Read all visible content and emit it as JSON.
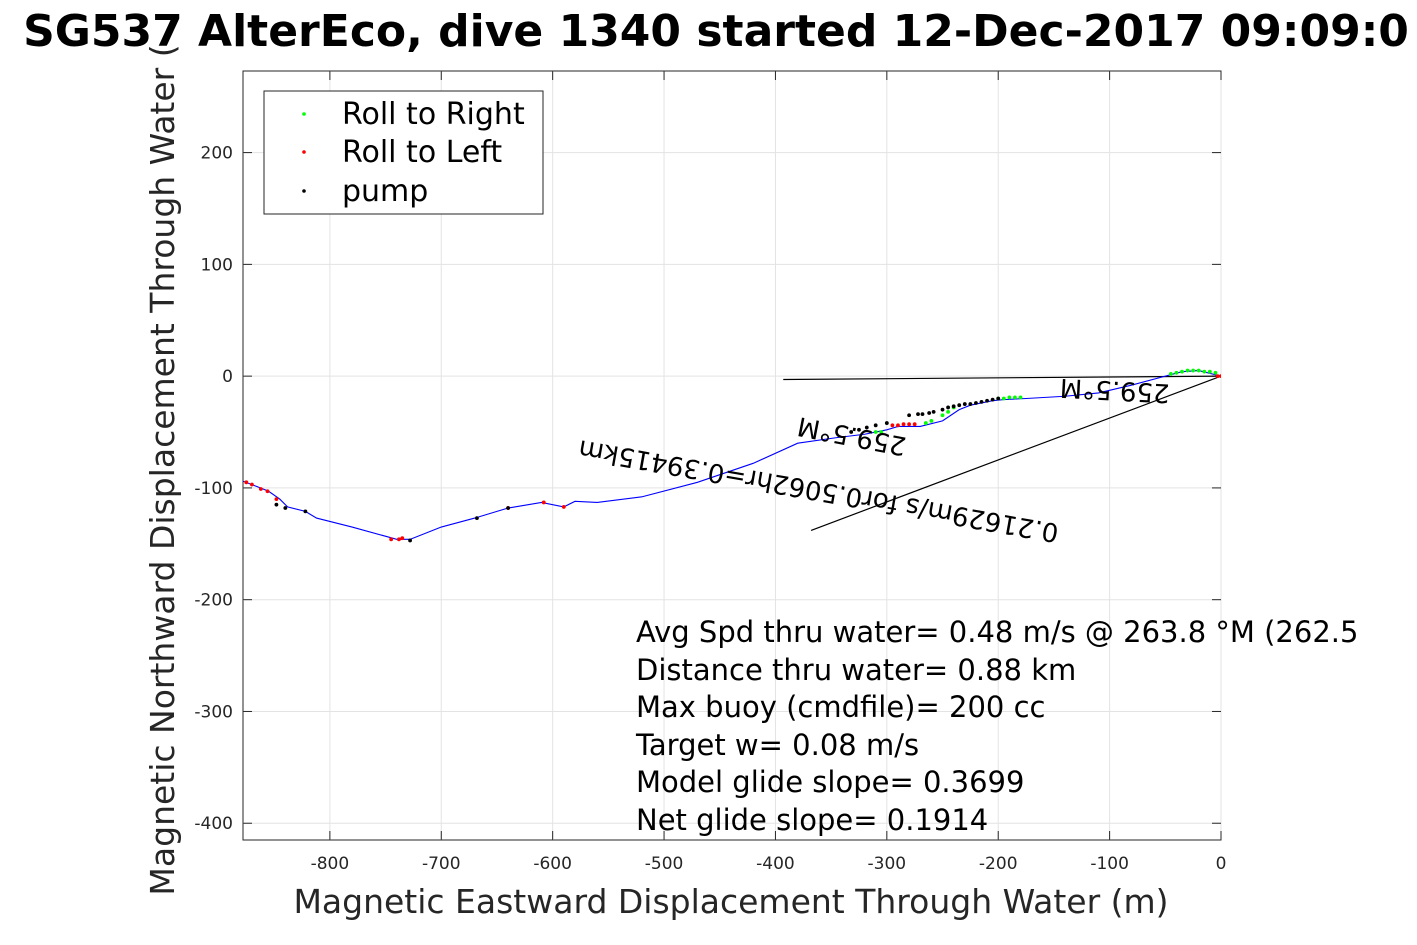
{
  "chart_data": {
    "type": "scatter",
    "title": "SG537 AlterEco, dive 1340 started 12-Dec-2017 09:09:0",
    "xlabel": "Magnetic Eastward Displacement Through Water (m)",
    "ylabel": "Magnetic Northward Displacement Through Water (",
    "xlim": [
      -878,
      0
    ],
    "ylim": [
      -415,
      273
    ],
    "xticks": [
      -800,
      -700,
      -600,
      -500,
      -400,
      -300,
      -200,
      -100,
      0
    ],
    "yticks": [
      200,
      100,
      0,
      -100,
      -200,
      -300,
      -400
    ],
    "grid": true,
    "legend_position": "top-left",
    "legend": [
      {
        "label": "Roll to Right",
        "color": "#00ff00"
      },
      {
        "label": "Roll to Left",
        "color": "#ff0000"
      },
      {
        "label": "pump",
        "color": "#000000"
      }
    ],
    "track": {
      "color": "#0000ff",
      "x": [
        0,
        -20,
        -35,
        -50,
        -80,
        -110,
        -140,
        -175,
        -195,
        -205,
        -215,
        -225,
        -235,
        -250,
        -270,
        -290,
        -300,
        -320,
        -345,
        -380,
        -420,
        -470,
        -520,
        -560,
        -580,
        -590,
        -610,
        -640,
        -670,
        -700,
        -728,
        -740,
        -780,
        -812,
        -822,
        -838,
        -845,
        -855,
        -865,
        -878
      ],
      "y": [
        0,
        5,
        4,
        0,
        -8,
        -15,
        -18,
        -20,
        -21,
        -22,
        -24,
        -26,
        -30,
        -40,
        -45,
        -45,
        -48,
        -52,
        -55,
        -60,
        -78,
        -95,
        -108,
        -113,
        -112,
        -117,
        -113,
        -118,
        -127,
        -135,
        -146,
        -146,
        -135,
        -127,
        -121,
        -117,
        -110,
        -103,
        -99,
        -94
      ]
    },
    "roll_right": {
      "color": "#00ff00",
      "x": [
        -5,
        -10,
        -15,
        -20,
        -25,
        -30,
        -35,
        -40,
        -45,
        -180,
        -185,
        -190,
        -195,
        -200,
        -240,
        -245,
        -250,
        -260,
        -265,
        -305,
        -310
      ],
      "y": [
        3,
        4,
        4,
        5,
        5,
        5,
        4,
        3,
        2,
        -19,
        -19,
        -19,
        -20,
        -20,
        -28,
        -32,
        -35,
        -40,
        -42,
        -50,
        -50
      ]
    },
    "roll_left": {
      "color": "#ff0000",
      "x": [
        0,
        -3,
        -275,
        -280,
        -285,
        -290,
        -295,
        -735,
        -738,
        -590,
        -608,
        -640,
        -745,
        -848,
        -856,
        -862,
        -870,
        -875
      ],
      "y": [
        0,
        0,
        -43,
        -43,
        -43,
        -44,
        -44,
        -145,
        -146,
        -117,
        -113,
        -118,
        -146,
        -110,
        -103,
        -101,
        -97,
        -95
      ]
    },
    "pump": {
      "color": "#000000",
      "x": [
        -200,
        -205,
        -210,
        -215,
        -220,
        -225,
        -230,
        -235,
        -240,
        -245,
        -250,
        -258,
        -262,
        -268,
        -272,
        -280,
        -300,
        -310,
        -318,
        -325,
        -332,
        -668,
        -640,
        -728,
        -822,
        -840,
        -848
      ],
      "y": [
        -20,
        -21,
        -22,
        -23,
        -24,
        -25,
        -25,
        -26,
        -27,
        -28,
        -30,
        -32,
        -33,
        -34,
        -34,
        -35,
        -42,
        -44,
        -46,
        -48,
        -50,
        -127,
        -118,
        -147,
        -121,
        -118,
        -115
      ]
    },
    "current_lines": [
      {
        "x": [
          0,
          -393
        ],
        "y": [
          0,
          -3
        ]
      },
      {
        "x": [
          0,
          -368
        ],
        "y": [
          0,
          -138
        ]
      }
    ],
    "current_labels": [
      {
        "text": "259.5°M",
        "x": -95,
        "y": -5,
        "angle": 183
      },
      {
        "text": "0.21629m/s for0.5062hr=0.39415km",
        "x": -360,
        "y": -95,
        "angle": 190
      },
      {
        "text": "259.5°M",
        "x": -330,
        "y": -46,
        "angle": 191
      }
    ],
    "annotations": [
      "Avg Spd thru water=  0.48 m/s @ 263.8 °M (262.5",
      "Distance thru water=  0.88 km",
      "Max buoy (cmdfile)= 200 cc",
      "Target w= 0.08 m/s",
      "Model glide slope= 0.3699",
      "Net glide slope= 0.1914"
    ]
  }
}
